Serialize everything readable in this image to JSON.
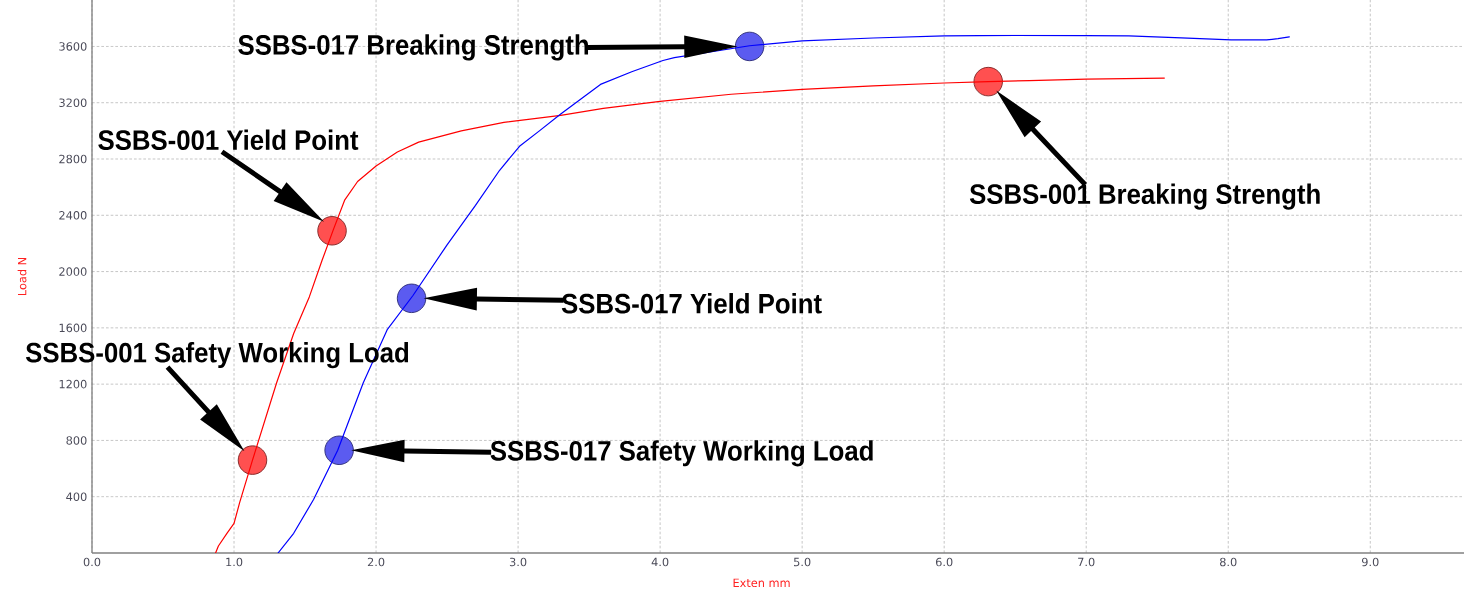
{
  "chart_data": {
    "type": "line",
    "xlabel": "Exten mm",
    "ylabel": "Load N",
    "xlim": [
      0,
      9.66
    ],
    "ylim": [
      0,
      3930
    ],
    "xticks": [
      {
        "value": 0,
        "label": "0.0"
      },
      {
        "value": 1,
        "label": "1.0"
      },
      {
        "value": 2,
        "label": "2.0"
      },
      {
        "value": 3,
        "label": "3.0"
      },
      {
        "value": 4,
        "label": "4.0"
      },
      {
        "value": 5,
        "label": "5.0"
      },
      {
        "value": 6,
        "label": "6.0"
      },
      {
        "value": 7,
        "label": "7.0"
      },
      {
        "value": 8,
        "label": "8.0"
      },
      {
        "value": 9,
        "label": "9.0"
      }
    ],
    "yticks": [
      400,
      800,
      1200,
      1600,
      2000,
      2400,
      2800,
      3200,
      3600
    ],
    "grid": true,
    "series": [
      {
        "color": "#ff0000",
        "x": [
          0.87,
          0.89,
          0.95,
          1.0,
          1.04,
          1.13,
          1.3,
          1.42,
          1.53,
          1.62,
          1.7,
          1.78,
          1.87,
          2.0,
          2.15,
          2.3,
          2.6,
          2.9,
          3.3,
          3.6,
          4.0,
          4.5,
          5.0,
          5.5,
          6.0,
          6.31,
          6.6,
          7.0,
          7.55
        ],
        "values": [
          0,
          50,
          140,
          210,
          360,
          660,
          1210,
          1560,
          1820,
          2080,
          2300,
          2510,
          2640,
          2750,
          2850,
          2920,
          3000,
          3060,
          3110,
          3160,
          3210,
          3260,
          3295,
          3320,
          3340,
          3350,
          3357,
          3368,
          3375
        ]
      },
      {
        "color": "#0000ff",
        "x": [
          1.31,
          1.42,
          1.56,
          1.73,
          1.91,
          2.08,
          2.26,
          2.5,
          2.7,
          2.87,
          3.01,
          3.15,
          3.3,
          3.58,
          3.8,
          4.02,
          4.1,
          4.63,
          5.0,
          5.5,
          6.0,
          6.5,
          7.0,
          7.3,
          7.67,
          8.02,
          8.27,
          8.35,
          8.43
        ],
        "values": [
          0,
          140,
          380,
          730,
          1210,
          1590,
          1830,
          2190,
          2470,
          2720,
          2890,
          3000,
          3120,
          3330,
          3420,
          3500,
          3520,
          3605,
          3640,
          3660,
          3675,
          3678,
          3677,
          3675,
          3661,
          3646,
          3646,
          3655,
          3668
        ]
      },
      {
        "type": "scatter",
        "marker": "circle",
        "color": "#ff5050",
        "x": [
          1.13,
          1.69,
          6.31
        ],
        "values": [
          660,
          2290,
          3350
        ]
      },
      {
        "type": "scatter",
        "marker": "circle",
        "color": "#5b5bf0",
        "x": [
          1.74,
          2.25,
          4.63
        ],
        "values": [
          730,
          1810,
          3600
        ]
      }
    ],
    "annotations": [
      "SSBS-017 Breaking Strength",
      {
        "text": "SSBS-001 Yield Point",
        "x": 1.69,
        "y": 2290
      },
      "SSBS-001 Breaking Strength",
      "SSBS-017 Yield Point",
      "SSBS-001 Safety Working Load",
      "SSBS-017 Safety Working Load"
    ]
  }
}
